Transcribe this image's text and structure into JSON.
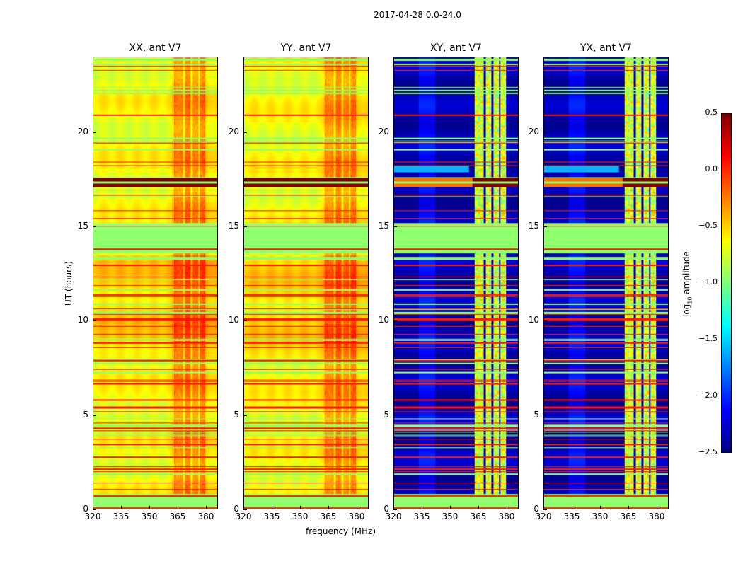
{
  "figure_title": "2017-04-28 0.0-24.0",
  "chart_data": {
    "type": "heatmap",
    "title": "2017-04-28 0.0-24.0",
    "xlabel": "frequency (MHz)",
    "ylabel": "UT (hours)",
    "xlim": [
      320,
      386.4
    ],
    "ylim": [
      0,
      24
    ],
    "xticks": [
      "320",
      "335",
      "350",
      "365",
      "380"
    ],
    "xtick_values": [
      320,
      335,
      350,
      365,
      380
    ],
    "yticks": [
      "0",
      "5",
      "10",
      "15",
      "20"
    ],
    "ytick_values": [
      0,
      5,
      10,
      15,
      20
    ],
    "panels": [
      {
        "title": "XX, ant V7",
        "kind": "auto"
      },
      {
        "title": "YY, ant V7",
        "kind": "auto"
      },
      {
        "title": "XY, ant V7",
        "kind": "cross"
      },
      {
        "title": "YX, ant V7",
        "kind": "cross"
      }
    ],
    "colorbar": {
      "label": "log10 amplitude",
      "label_main": "log",
      "label_sub": "10",
      "label_rest": " amplitude",
      "colormap": "jet",
      "range": [
        -2.5,
        0.5
      ],
      "ticks": [
        "0.5",
        "0.0",
        "−0.5",
        "−1.0",
        "−1.5",
        "−2.0",
        "−2.5"
      ],
      "tick_values": [
        0.5,
        0,
        -0.5,
        -1,
        -1.5,
        -2,
        -2.5
      ]
    },
    "features": {
      "flagged_band_hours": [
        13.6,
        15.2
      ],
      "strong_rfi_hours": [
        17.1,
        17.6
      ],
      "bright_frequency_channels_mhz": [
        [
          363,
          368
        ],
        [
          369,
          372
        ],
        [
          373,
          376
        ],
        [
          377,
          380
        ]
      ]
    }
  }
}
